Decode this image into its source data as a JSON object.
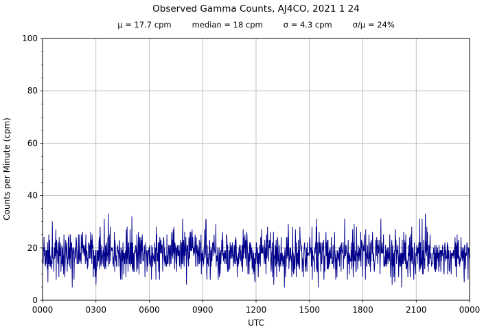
{
  "chart_data": {
    "type": "line",
    "title": "Observed Gamma Counts, AJ4CO, 2021 1 24",
    "stats": [
      "μ = 17.7 cpm",
      "median = 18 cpm",
      "σ = 4.3 cpm",
      "σ/μ = 24%"
    ],
    "xlabel": "UTC",
    "ylabel": "Counts per Minute (cpm)",
    "x_tick_labels": [
      "0000",
      "0300",
      "0600",
      "0900",
      "1200",
      "1500",
      "1800",
      "2100",
      "0000"
    ],
    "x_tick_minutes": [
      0,
      180,
      360,
      540,
      720,
      900,
      1080,
      1260,
      1440
    ],
    "y_ticks": [
      0,
      20,
      40,
      60,
      80,
      100
    ],
    "y_minor_step": 5,
    "ylim": [
      0,
      100
    ],
    "xlim_minutes": [
      0,
      1440
    ],
    "grid": true,
    "grid_color": "#b0b0b0",
    "line_color": "#00008B",
    "axis_color": "#000000",
    "series": [
      {
        "name": "observed-gamma-counts",
        "units": "cpm",
        "sample_interval_minutes": 1,
        "n_points": 1440,
        "mean_cpm": 17.7,
        "median_cpm": 18,
        "sigma_cpm": 4.3,
        "min_cpm": 5,
        "max_cpm": 33,
        "noise_seed": 20210124,
        "notable_points": [
          {
            "minute": 18,
            "value": 7
          },
          {
            "minute": 100,
            "value": 5
          },
          {
            "minute": 551,
            "value": 31
          },
          {
            "minute": 1290,
            "value": 33
          }
        ]
      }
    ]
  }
}
